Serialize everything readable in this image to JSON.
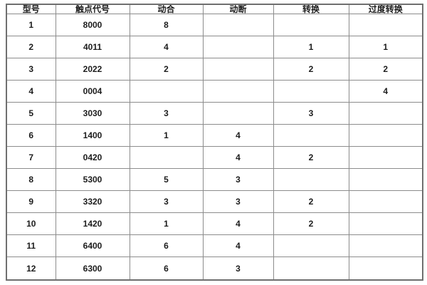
{
  "table": {
    "title": "contact-configuration-table",
    "headers": [
      "型号",
      "触点代号",
      "动合",
      "动断",
      "转换",
      "过度转换"
    ],
    "rows": [
      [
        "1",
        "8000",
        "8",
        "",
        "",
        ""
      ],
      [
        "2",
        "4011",
        "4",
        "",
        "1",
        "1"
      ],
      [
        "3",
        "2022",
        "2",
        "",
        "2",
        "2"
      ],
      [
        "4",
        "0004",
        "",
        "",
        "",
        "4"
      ],
      [
        "5",
        "3030",
        "3",
        "",
        "3",
        ""
      ],
      [
        "6",
        "1400",
        "1",
        "4",
        "",
        ""
      ],
      [
        "7",
        "0420",
        "",
        "4",
        "2",
        ""
      ],
      [
        "8",
        "5300",
        "5",
        "3",
        "",
        ""
      ],
      [
        "9",
        "3320",
        "3",
        "3",
        "2",
        ""
      ],
      [
        "10",
        "1420",
        "1",
        "4",
        "2",
        ""
      ],
      [
        "11",
        "6400",
        "6",
        "4",
        "",
        ""
      ],
      [
        "12",
        "6300",
        "6",
        "3",
        "",
        ""
      ]
    ]
  },
  "colors": {
    "background": "#ffffff",
    "border_outer": "#6f6f6f",
    "border_inner": "#8c8c8c",
    "text": "#1c1c1c"
  }
}
